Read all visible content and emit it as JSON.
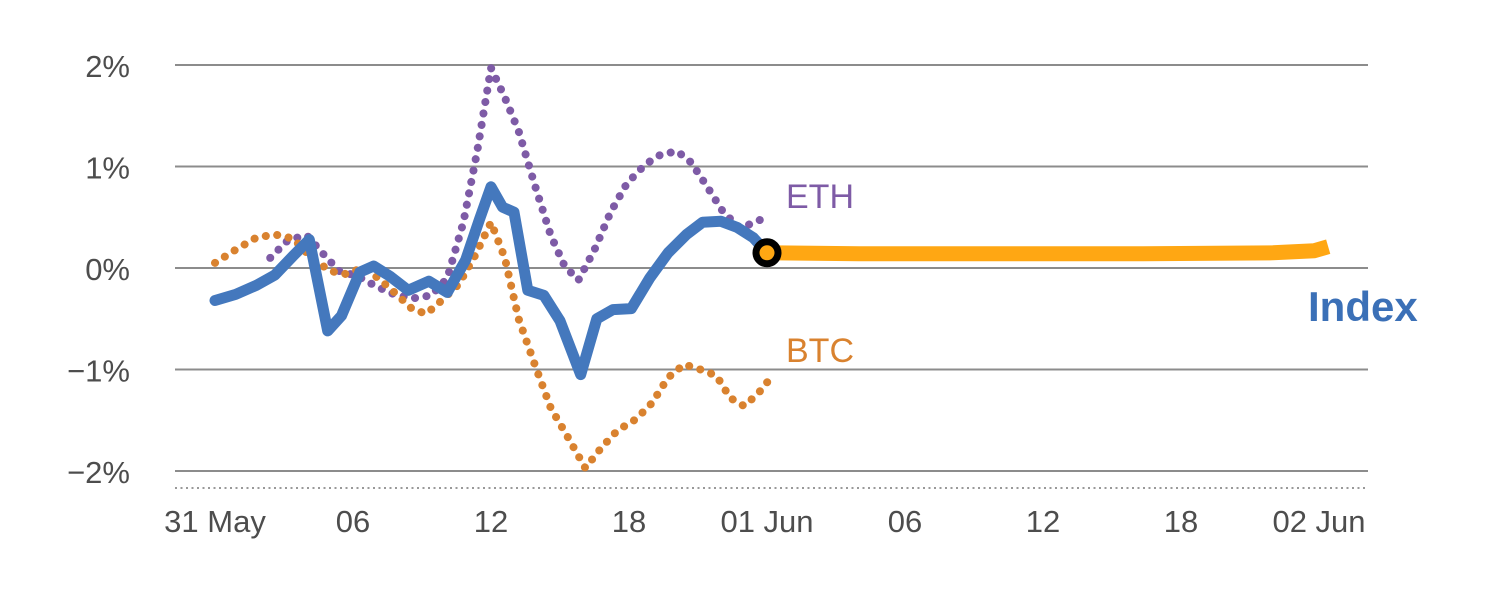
{
  "chart_data": {
    "type": "line",
    "title": "",
    "xlabel": "",
    "ylabel": "",
    "x_unit": "hours since 31 May 00:00",
    "xlim_hours": [
      -1.7,
      50.2
    ],
    "ylim": [
      -2,
      2
    ],
    "grid": true,
    "colors": {
      "grid": "#8C8C8C",
      "axis_line": "#999999",
      "axis_text": "#4D4D4D"
    },
    "y_ticks": [
      {
        "value": 2,
        "label": "2%"
      },
      {
        "value": 1,
        "label": "1%"
      },
      {
        "value": 0,
        "label": "0%"
      },
      {
        "value": -1,
        "label": "−1%"
      },
      {
        "value": -2,
        "label": "−2%"
      }
    ],
    "x_ticks": [
      {
        "hour": 0,
        "label": "31 May"
      },
      {
        "hour": 6,
        "label": "06"
      },
      {
        "hour": 12,
        "label": "12"
      },
      {
        "hour": 18,
        "label": "18"
      },
      {
        "hour": 24,
        "label": "01 Jun"
      },
      {
        "hour": 30,
        "label": "06"
      },
      {
        "hour": 36,
        "label": "12"
      },
      {
        "hour": 42,
        "label": "18"
      },
      {
        "hour": 48,
        "label": "02 Jun"
      }
    ],
    "series": [
      {
        "id": "eth",
        "name": "ETH",
        "color": "#7E5BA6",
        "style": "dotted",
        "x": [
          2.4,
          3.2,
          4.0,
          4.7,
          5.4,
          6.2,
          7.0,
          7.8,
          8.6,
          9.4,
          10.1,
          10.8,
          11.4,
          12.0,
          12.6,
          13.2,
          13.9,
          14.6,
          15.2,
          15.8,
          16.5,
          17.2,
          17.9,
          18.7,
          19.4,
          20.1,
          20.7,
          21.4,
          22.1,
          22.8,
          23.4,
          24.1
        ],
        "y": [
          0.1,
          0.28,
          0.32,
          0.14,
          -0.03,
          -0.08,
          -0.18,
          -0.26,
          -0.3,
          -0.27,
          -0.1,
          0.45,
          1.15,
          1.97,
          1.68,
          1.35,
          0.82,
          0.32,
          0.02,
          -0.12,
          0.18,
          0.55,
          0.83,
          1.02,
          1.12,
          1.15,
          1.04,
          0.8,
          0.55,
          0.4,
          0.44,
          0.52
        ]
      },
      {
        "id": "btc",
        "name": "BTC",
        "color": "#D9822F",
        "style": "dotted",
        "x": [
          0,
          0.9,
          1.8,
          2.6,
          3.4,
          4.2,
          5.0,
          5.7,
          6.4,
          7.1,
          7.9,
          8.6,
          9.2,
          9.9,
          10.6,
          11.3,
          12.0,
          12.6,
          13.2,
          13.9,
          14.6,
          15.3,
          16.1,
          16.8,
          17.5,
          18.3,
          19.0,
          19.7,
          20.4,
          21.1,
          21.8,
          22.4,
          23.0,
          23.6,
          24.1
        ],
        "y": [
          0.05,
          0.18,
          0.3,
          0.33,
          0.29,
          0.1,
          -0.03,
          -0.06,
          0.0,
          -0.1,
          -0.26,
          -0.41,
          -0.45,
          -0.31,
          -0.16,
          0.12,
          0.45,
          0.1,
          -0.5,
          -0.95,
          -1.38,
          -1.65,
          -1.97,
          -1.77,
          -1.6,
          -1.49,
          -1.33,
          -1.08,
          -0.95,
          -1.0,
          -1.06,
          -1.28,
          -1.36,
          -1.24,
          -1.1
        ]
      },
      {
        "id": "index",
        "name": "Index",
        "color": "#4478BD",
        "style": "solid",
        "x": [
          0,
          0.9,
          1.8,
          2.6,
          3.4,
          4.1,
          4.9,
          5.5,
          6.3,
          6.9,
          7.6,
          8.4,
          9.3,
          10.1,
          10.9,
          11.5,
          12.0,
          12.5,
          13.0,
          13.6,
          14.3,
          15.0,
          15.9,
          16.6,
          17.3,
          18.1,
          18.9,
          19.7,
          20.5,
          21.2,
          22.0,
          22.7,
          23.4,
          24.0
        ],
        "y": [
          -0.32,
          -0.26,
          -0.17,
          -0.07,
          0.12,
          0.28,
          -0.62,
          -0.47,
          -0.04,
          0.02,
          -0.08,
          -0.22,
          -0.13,
          -0.24,
          0.08,
          0.48,
          0.8,
          0.6,
          0.55,
          -0.22,
          -0.27,
          -0.52,
          -1.05,
          -0.5,
          -0.41,
          -0.4,
          -0.1,
          0.15,
          0.33,
          0.45,
          0.46,
          0.4,
          0.3,
          0.15
        ]
      },
      {
        "id": "index-extension",
        "name": "Index",
        "color": "#FFA713",
        "style": "band",
        "x": [
          24.0,
          28,
          34,
          40,
          46,
          47.8,
          48.4
        ],
        "y": [
          0.15,
          0.14,
          0.14,
          0.14,
          0.15,
          0.17,
          0.21
        ]
      }
    ],
    "marker": {
      "x": 24,
      "y": 0.15,
      "type": "open-circle",
      "color": "#000000",
      "fill": "#FFA713"
    }
  }
}
